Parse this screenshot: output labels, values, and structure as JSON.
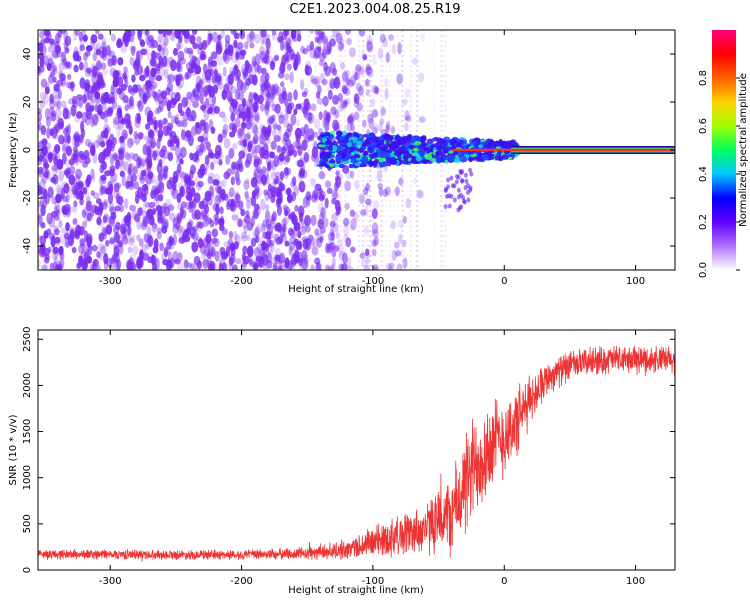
{
  "title": "C2E1.2023.004.08.25.R19",
  "colors": {
    "snr_line": "#ee3333",
    "spectro_scatter": "#7a2bf0",
    "band_outer": "#2200aa",
    "band_mid": "#22dd55",
    "band_core": "#ff2a2a"
  },
  "chart_data": [
    {
      "type": "heatmap",
      "title": "",
      "xlabel": "Height of straight line (km)",
      "ylabel": "Frequency (Hz)",
      "xlim": [
        -355,
        130
      ],
      "ylim": [
        -50,
        50
      ],
      "xticks": [
        -300,
        -200,
        -100,
        0,
        100
      ],
      "yticks": [
        -40,
        -20,
        0,
        20,
        40
      ],
      "colorbar": {
        "label": "Normalized spectral amplitude",
        "range": [
          0,
          1
        ],
        "ticks": [
          "0.0",
          "0.2",
          "0.4",
          "0.6",
          "0.8"
        ],
        "stops": [
          "#ffffff",
          "#b070ff",
          "#6000ff",
          "#0000ff",
          "#00c8ff",
          "#00ff60",
          "#a0ff00",
          "#ffd000",
          "#ff6000",
          "#ff0000",
          "#ff0080"
        ]
      },
      "features": {
        "noise_region_x": [
          -355,
          -50
        ],
        "signal_band_x": [
          -140,
          130
        ],
        "signal_center_hz": 0
      }
    },
    {
      "type": "line",
      "title": "",
      "xlabel": "Height of straight line (km)",
      "ylabel": "SNR (10 * v/v)",
      "xlim": [
        -355,
        130
      ],
      "ylim": [
        0,
        2600
      ],
      "xticks": [
        -300,
        -200,
        -100,
        0,
        100
      ],
      "yticks": [
        0,
        500,
        1000,
        1500,
        2000,
        2500
      ],
      "series": [
        {
          "x": [
            -355,
            -300,
            -250,
            -200,
            -150,
            -120,
            -100,
            -80,
            -60,
            -40,
            -30,
            -20,
            -10,
            0,
            10,
            20,
            30,
            40,
            60,
            80,
            100,
            130
          ],
          "mean": [
            170,
            170,
            165,
            165,
            180,
            220,
            300,
            380,
            450,
            600,
            900,
            1200,
            1350,
            1450,
            1600,
            1850,
            2050,
            2150,
            2250,
            2280,
            2280,
            2270
          ],
          "spread": [
            60,
            60,
            60,
            60,
            80,
            120,
            200,
            260,
            320,
            500,
            650,
            700,
            600,
            500,
            450,
            300,
            220,
            200,
            180,
            180,
            180,
            180
          ]
        }
      ]
    }
  ]
}
